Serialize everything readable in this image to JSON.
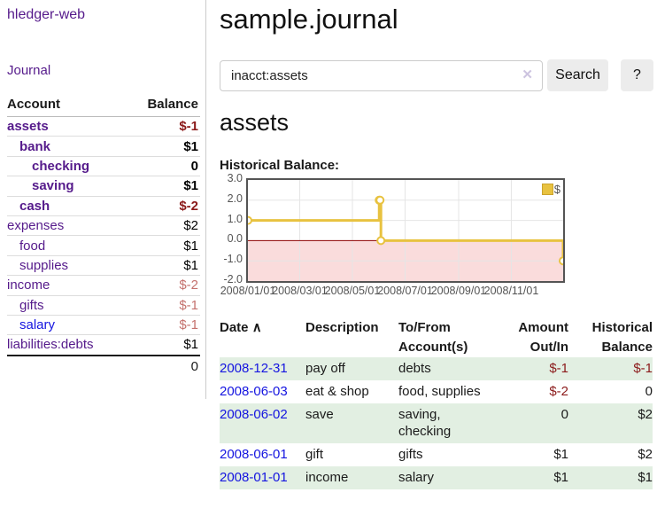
{
  "sidebar": {
    "app_title": "hledger-web",
    "nav": {
      "journal": "Journal"
    },
    "accounts_table": {
      "col_account": "Account",
      "col_balance": "Balance",
      "rows": [
        {
          "name": "assets",
          "indent": 0,
          "bold": true,
          "link_color": "purple",
          "balance": "$-1",
          "balance_style": "neg-strong"
        },
        {
          "name": "bank",
          "indent": 1,
          "bold": true,
          "link_color": "purple",
          "balance": "$1",
          "balance_style": "pos"
        },
        {
          "name": "checking",
          "indent": 2,
          "bold": true,
          "link_color": "purple",
          "balance": "0",
          "balance_style": "pos"
        },
        {
          "name": "saving",
          "indent": 2,
          "bold": true,
          "link_color": "purple",
          "balance": "$1",
          "balance_style": "pos"
        },
        {
          "name": "cash",
          "indent": 1,
          "bold": true,
          "link_color": "purple",
          "balance": "$-2",
          "balance_style": "neg-strong"
        },
        {
          "name": "expenses",
          "indent": 0,
          "bold": false,
          "link_color": "purple",
          "balance": "$2",
          "balance_style": "pos"
        },
        {
          "name": "food",
          "indent": 1,
          "bold": false,
          "link_color": "purple",
          "balance": "$1",
          "balance_style": "pos"
        },
        {
          "name": "supplies",
          "indent": 1,
          "bold": false,
          "link_color": "purple",
          "balance": "$1",
          "balance_style": "pos"
        },
        {
          "name": "income",
          "indent": 0,
          "bold": false,
          "link_color": "purple",
          "balance": "$-2",
          "balance_style": "neg-soft"
        },
        {
          "name": "gifts",
          "indent": 1,
          "bold": false,
          "link_color": "purple",
          "balance": "$-1",
          "balance_style": "neg-soft"
        },
        {
          "name": "salary",
          "indent": 1,
          "bold": false,
          "link_color": "blue",
          "balance": "$-1",
          "balance_style": "neg-soft"
        },
        {
          "name": "liabilities:debts",
          "indent": 0,
          "bold": false,
          "link_color": "purple",
          "balance": "$1",
          "balance_style": "pos"
        }
      ],
      "total": "0"
    }
  },
  "main": {
    "page_title": "sample.journal",
    "search": {
      "value": "inacct:assets",
      "clear_icon": "✕",
      "search_button": "Search",
      "help_button": "?"
    },
    "account_heading": "assets",
    "chart_heading": "Historical Balance:"
  },
  "chart_data": {
    "type": "line",
    "step": true,
    "title": "Historical Balance",
    "x_range": [
      "2008-01-01",
      "2008-12-31"
    ],
    "ylim": [
      -2.0,
      3.0
    ],
    "grid": true,
    "legend_position": "top-right",
    "series": [
      {
        "name": "$",
        "color": "#e8c240",
        "points": [
          [
            "2008-01-01",
            1
          ],
          [
            "2008-06-01",
            2
          ],
          [
            "2008-06-02",
            2
          ],
          [
            "2008-06-03",
            0
          ],
          [
            "2008-12-31",
            -1
          ]
        ]
      }
    ],
    "yticks": [
      {
        "value": 3,
        "label": "3.0"
      },
      {
        "value": 2,
        "label": "2.0"
      },
      {
        "value": 1,
        "label": "1.0"
      },
      {
        "value": 0,
        "label": "0.0"
      },
      {
        "value": -1,
        "label": "-1.0"
      },
      {
        "value": -2,
        "label": "-2.0"
      }
    ],
    "xticks": [
      {
        "date": "2008-01-01",
        "label": "2008/01/01"
      },
      {
        "date": "2008-03-01",
        "label": "2008/03/01"
      },
      {
        "date": "2008-05-01",
        "label": "2008/05/01"
      },
      {
        "date": "2008-07-01",
        "label": "2008/07/01"
      },
      {
        "date": "2008-09-01",
        "label": "2008/09/01"
      },
      {
        "date": "2008-11-01",
        "label": "2008/11/01"
      }
    ],
    "negative_region_color": "#fadcdc",
    "zero_line_color": "#8b0000",
    "grid_color": "#e5e5e5"
  },
  "register_table": {
    "headers": {
      "date": "Date",
      "date_sort_icon": "∧",
      "description": "Description",
      "tofrom_line1": "To/From",
      "tofrom_line2": "Account(s)",
      "amount_line1": "Amount",
      "amount_line2": "Out/In",
      "balance_line1": "Historical",
      "balance_line2": "Balance"
    },
    "rows": [
      {
        "date": "2008-12-31",
        "description": "pay off",
        "accounts": "debts",
        "amount": "$-1",
        "amount_neg": true,
        "balance": "$-1",
        "balance_neg": true
      },
      {
        "date": "2008-06-03",
        "description": "eat & shop",
        "accounts": "food, supplies",
        "amount": "$-2",
        "amount_neg": true,
        "balance": "0",
        "balance_neg": false
      },
      {
        "date": "2008-06-02",
        "description": "save",
        "accounts": "saving, checking",
        "amount": "0",
        "amount_neg": false,
        "balance": "$2",
        "balance_neg": false
      },
      {
        "date": "2008-06-01",
        "description": "gift",
        "accounts": "gifts",
        "amount": "$1",
        "amount_neg": false,
        "balance": "$2",
        "balance_neg": false
      },
      {
        "date": "2008-01-01",
        "description": "income",
        "accounts": "salary",
        "amount": "$1",
        "amount_neg": false,
        "balance": "$1",
        "balance_neg": false
      }
    ]
  }
}
